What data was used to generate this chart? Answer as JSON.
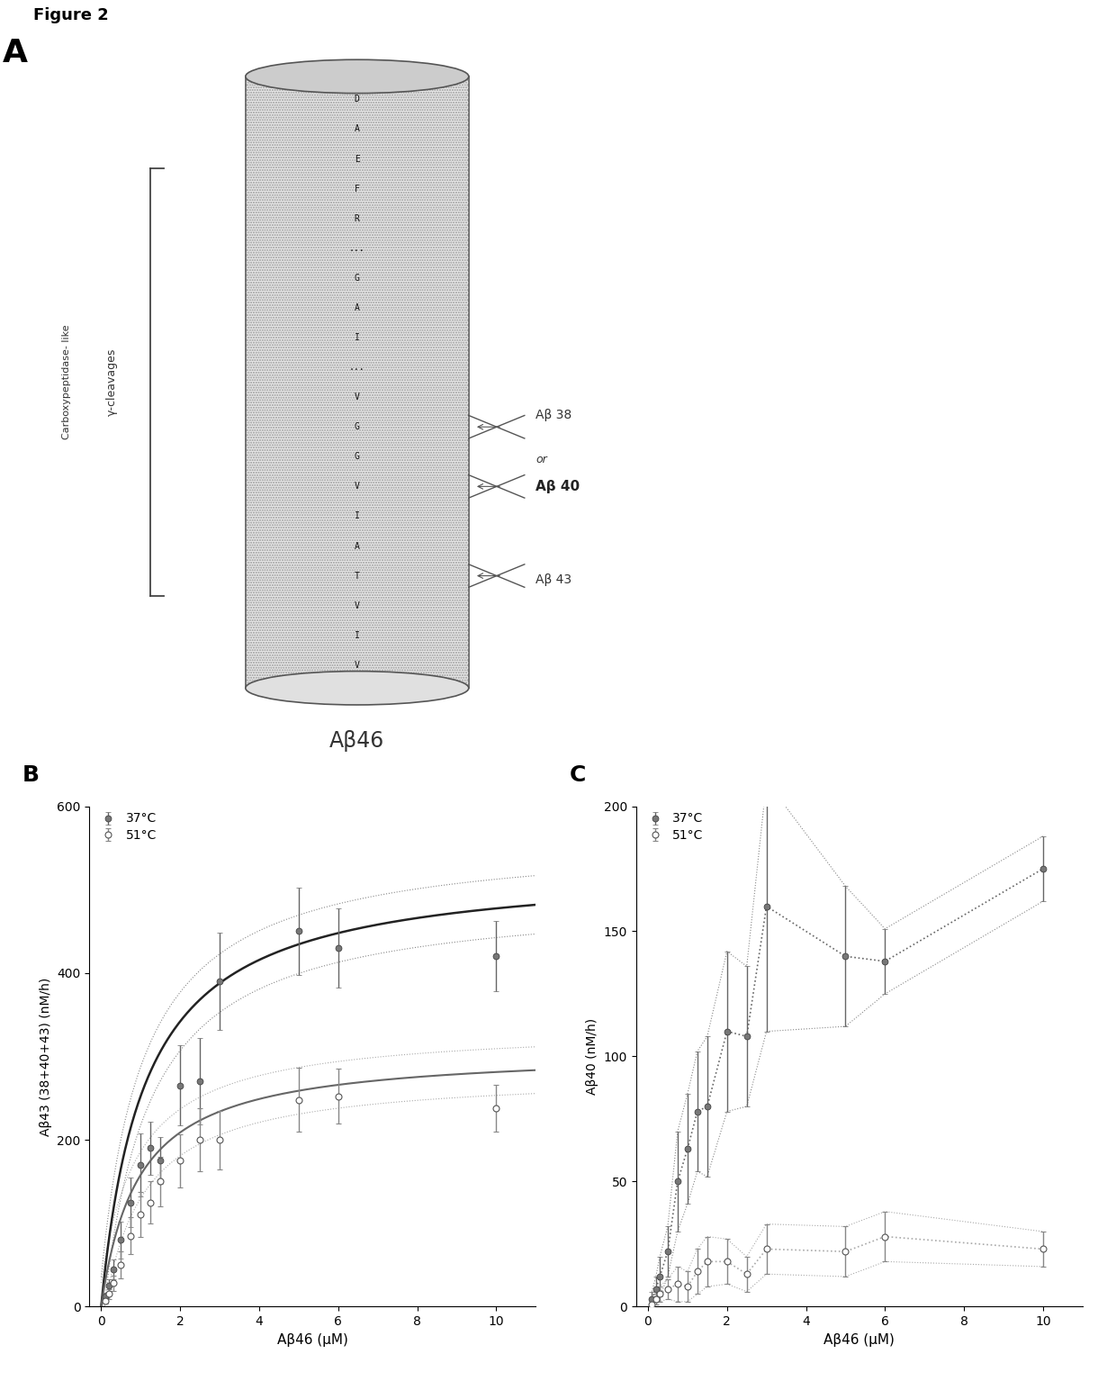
{
  "figure_label": "Figure 2",
  "panel_A_label": "A",
  "panel_B_label": "B",
  "panel_C_label": "C",
  "cylinder_residues": [
    "D",
    "A",
    "E",
    "F",
    "R",
    "...",
    "G",
    "A",
    "I",
    "...",
    "V",
    "G",
    "G",
    "V",
    "I",
    "A",
    "T",
    "V",
    "I",
    "V"
  ],
  "ab46_label": "Aβ46",
  "ab38_label": "Aβ 38",
  "ab40_label": "Aβ 40",
  "ab43_label": "Aβ 43",
  "gamma_label": "γ-cleavages",
  "carboxy_label": "Carboxypeptidase- like",
  "B_x_37": [
    0.1,
    0.2,
    0.3,
    0.5,
    0.75,
    1.0,
    1.25,
    1.5,
    2.0,
    2.5,
    3.0,
    5.0,
    6.0,
    10.0
  ],
  "B_y_37": [
    12,
    25,
    45,
    80,
    125,
    170,
    190,
    175,
    265,
    270,
    390,
    450,
    430,
    420
  ],
  "B_yerr_37": [
    5,
    8,
    12,
    22,
    30,
    38,
    32,
    28,
    48,
    52,
    58,
    52,
    48,
    42
  ],
  "B_x_51": [
    0.1,
    0.2,
    0.3,
    0.5,
    0.75,
    1.0,
    1.25,
    1.5,
    2.0,
    2.5,
    3.0,
    5.0,
    6.0,
    10.0
  ],
  "B_y_51": [
    7,
    15,
    28,
    50,
    85,
    110,
    125,
    150,
    175,
    200,
    200,
    248,
    252,
    238
  ],
  "B_yerr_51": [
    3,
    6,
    9,
    16,
    22,
    27,
    25,
    30,
    32,
    38,
    35,
    38,
    33,
    28
  ],
  "B_Vmax_37": 530,
  "B_Km_37": 1.1,
  "B_Vmax_51": 308,
  "B_Km_51": 0.95,
  "B_ci_37": 35,
  "B_ci_51": 28,
  "C_x_37": [
    0.1,
    0.2,
    0.3,
    0.5,
    0.75,
    1.0,
    1.25,
    1.5,
    2.0,
    2.5,
    3.0,
    5.0,
    6.0,
    10.0
  ],
  "C_y_37": [
    3,
    7,
    12,
    22,
    50,
    63,
    78,
    80,
    110,
    108,
    160,
    140,
    138,
    175
  ],
  "C_yerr_37": [
    3,
    5,
    8,
    10,
    20,
    22,
    24,
    28,
    32,
    28,
    50,
    28,
    13,
    13
  ],
  "C_x_51": [
    0.1,
    0.2,
    0.3,
    0.5,
    0.75,
    1.0,
    1.25,
    1.5,
    2.0,
    2.5,
    3.0,
    5.0,
    6.0,
    10.0
  ],
  "C_y_51": [
    1,
    3,
    5,
    7,
    9,
    8,
    14,
    18,
    18,
    13,
    23,
    22,
    28,
    23
  ],
  "C_yerr_51": [
    1,
    2,
    3,
    4,
    7,
    6,
    9,
    10,
    9,
    7,
    10,
    10,
    10,
    7
  ],
  "color_37_fill": "#888888",
  "color_51_fill": "#bbbbbb",
  "background_color": "#ffffff",
  "B_xlabel": "Aβ46 (μM)",
  "B_ylabel": "Aβ43 (38+40+43) (nM/h)",
  "B_ylim": [
    0,
    600
  ],
  "B_yticks": [
    0,
    200,
    400,
    600
  ],
  "C_xlabel": "Aβ46 (μM)",
  "C_ylabel": "Aβ40 (nM/h)",
  "C_ylim": [
    0,
    200
  ],
  "C_yticks": [
    0,
    50,
    100,
    150,
    200
  ],
  "xlim": [
    -0.2,
    11
  ],
  "xticks": [
    0,
    2,
    4,
    6,
    8,
    10
  ]
}
